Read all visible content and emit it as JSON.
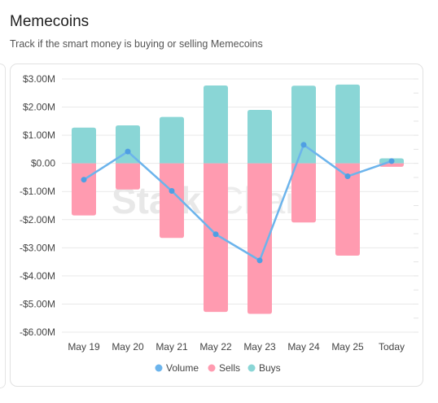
{
  "header": {
    "title": "Memecoins",
    "subtitle": "Track if the smart money is buying or selling Memecoins"
  },
  "watermark": {
    "bold": "Stalk",
    "light": "Chain"
  },
  "chart_data": {
    "type": "bar",
    "categories": [
      "May 19",
      "May 20",
      "May 21",
      "May 22",
      "May 23",
      "May 24",
      "May 25",
      "Today"
    ],
    "series": [
      {
        "name": "Volume",
        "type": "line",
        "color": "#6cb4ec",
        "values": [
          -0.58,
          0.42,
          -0.98,
          -2.52,
          -3.45,
          0.66,
          -0.46,
          0.08
        ]
      },
      {
        "name": "Sells",
        "type": "bar",
        "color": "#ff9bb0",
        "values": [
          -1.85,
          -0.93,
          -2.65,
          -5.28,
          -5.35,
          -2.1,
          -3.28,
          -0.12
        ]
      },
      {
        "name": "Buys",
        "type": "bar",
        "color": "#8ad6d6",
        "values": [
          1.27,
          1.35,
          1.65,
          2.77,
          1.9,
          2.76,
          2.8,
          0.18
        ]
      }
    ],
    "ylim": [
      -6,
      3
    ],
    "yticks": [
      3,
      2,
      1,
      0,
      -1,
      -2,
      -3,
      -4,
      -5,
      -6
    ],
    "ytick_labels": [
      "$3.00M",
      "$2.00M",
      "$1.00M",
      "$0.00",
      "-$1.00M",
      "-$2.00M",
      "-$3.00M",
      "-$4.00M",
      "-$5.00M",
      "-$6.00M"
    ],
    "legend": {
      "position": "bottom-center",
      "entries": [
        "Volume",
        "Sells",
        "Buys"
      ]
    },
    "grid": true,
    "stacked": true
  }
}
